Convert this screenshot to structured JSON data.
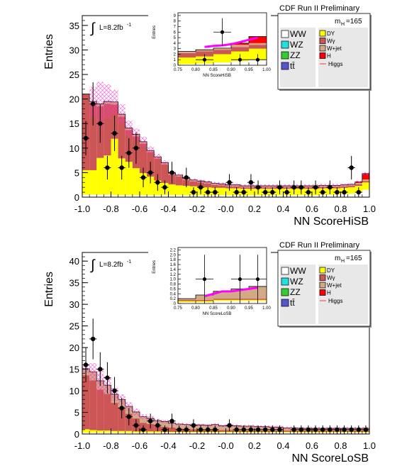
{
  "colors": {
    "WW": "#ffffff",
    "WZ": "#22e0e0",
    "ZZ": "#33cc33",
    "tt": "#5555cc",
    "DY": "#ffff00",
    "Wg": "#cc5555",
    "Wjet": "#d2aa88",
    "H": "#ff0000",
    "Higgs": "#ff00ff",
    "uncertainty": "#ff33cc"
  },
  "chart_data": [
    {
      "type": "area",
      "title": "CDF Run II Preliminary",
      "xlabel": "NN ScoreHiSB",
      "ylabel": "Entries",
      "lumi_label": "L=8.2fb",
      "lumi_sup": "-1",
      "integral_symbol": "∫",
      "mass_label": "m",
      "mass_sub": "H",
      "mass_value": "=165",
      "xlim": [
        -1.0,
        1.0
      ],
      "ylim": [
        0,
        37
      ],
      "x_ticks": [
        "-1.0",
        "-0.8",
        "-0.6",
        "-0.4",
        "-0.2",
        "-0.0",
        "0.2",
        "0.4",
        "0.6",
        "0.8",
        "1.0"
      ],
      "y_ticks": [
        "0",
        "5",
        "10",
        "15",
        "20",
        "25",
        "30",
        "35"
      ],
      "legend": [
        {
          "label": "WW",
          "key": "WW"
        },
        {
          "label": "DY",
          "key": "DY"
        },
        {
          "label": "WZ",
          "key": "WZ"
        },
        {
          "label": "Wγ",
          "key": "Wg"
        },
        {
          "label": "ZZ",
          "key": "ZZ"
        },
        {
          "label": "W+jet",
          "key": "Wjet"
        },
        {
          "label": "tt̄",
          "key": "tt"
        },
        {
          "label": "H",
          "key": "H"
        },
        {
          "label": "",
          "key": ""
        },
        {
          "label": "Higgs",
          "key": "Higgs"
        }
      ],
      "bin_width": 0.05,
      "stack": {
        "bins": [
          -1.0,
          -0.95,
          -0.9,
          -0.85,
          -0.8,
          -0.75,
          -0.7,
          -0.65,
          -0.6,
          -0.55,
          -0.5,
          -0.45,
          -0.4,
          -0.35,
          -0.3,
          -0.25,
          -0.2,
          -0.15,
          -0.1,
          -0.05,
          0.0,
          0.05,
          0.1,
          0.15,
          0.2,
          0.25,
          0.3,
          0.35,
          0.4,
          0.45,
          0.5,
          0.55,
          0.6,
          0.65,
          0.7,
          0.75,
          0.8,
          0.85,
          0.9,
          0.95
        ],
        "DY": [
          5,
          5,
          7.5,
          8,
          11.5,
          7.5,
          6.8,
          5.5,
          4.5,
          3.8,
          3,
          2.5,
          2.2,
          2,
          1.9,
          1.8,
          1.7,
          1.6,
          1.5,
          1.5,
          1.4,
          1.4,
          1.3,
          1.3,
          1.3,
          1.3,
          1.3,
          1.3,
          1.3,
          1.3,
          1.3,
          1.3,
          1.3,
          1.3,
          1.3,
          1.3,
          1.3,
          1.3,
          1.3,
          1.5
        ],
        "Wg": [
          15.5,
          13.5,
          10.5,
          10.5,
          7,
          8.5,
          6.5,
          6.5,
          6,
          5,
          4.5,
          3.8,
          2,
          1.8,
          1.2,
          1.0,
          0.9,
          0.8,
          0.6,
          0.5,
          0.4,
          0.4,
          0.3,
          0.3,
          0.3,
          0.3,
          0.3,
          0.3,
          0.3,
          0.3,
          0.3,
          0.3,
          0.3,
          0.3,
          0.3,
          0.3,
          0.3,
          0.3,
          0.3,
          0.3
        ],
        "Wjet": [
          0,
          0.5,
          0.5,
          0.5,
          0.5,
          0.5,
          0.4,
          0.4,
          0.4,
          0.3,
          0.3,
          0.3,
          0.3,
          0.3,
          0.3,
          0.3,
          0.3,
          0.3,
          0.3,
          0.3,
          0.3,
          0.3,
          0.3,
          0.3,
          0.3,
          0.3,
          0.3,
          0.3,
          0.3,
          0.3,
          0.3,
          0.3,
          0.3,
          0.3,
          0.3,
          0.3,
          0.3,
          0.3,
          0.3,
          0.3
        ],
        "WW": [
          0.5,
          0.5,
          0.5,
          0.5,
          0.4,
          0.4,
          0.4,
          0.4,
          0.4,
          0.4,
          0.4,
          0.4,
          0.4,
          0.4,
          0.4,
          0.4,
          0.4,
          0.4,
          0.4,
          0.4,
          0.4,
          0.4,
          0.4,
          0.4,
          0.4,
          0.4,
          0.4,
          0.4,
          0.4,
          0.4,
          0.4,
          0.4,
          0.4,
          0.5,
          0.5,
          0.5,
          0.6,
          0.7,
          1.0,
          1.5
        ],
        "H": [
          0,
          0,
          0,
          0,
          0,
          0,
          0,
          0,
          0,
          0,
          0,
          0,
          0,
          0,
          0,
          0,
          0,
          0,
          0,
          0,
          0,
          0,
          0,
          0,
          0,
          0,
          0,
          0,
          0,
          0,
          0,
          0,
          0,
          0,
          0,
          0,
          0,
          0,
          0.2,
          1.2
        ],
        "unc": [
          0,
          3,
          4.5,
          3.5,
          2.5,
          2,
          1.5,
          1.2,
          1,
          0.8,
          0.6,
          0.5,
          0.4,
          0.3,
          0.3,
          0.3,
          0.3,
          0.3,
          0.3,
          0.3,
          0.3,
          0.3,
          0.3,
          0.3,
          0.3,
          0.3,
          0.3,
          0.3,
          0.3,
          0.3,
          0.3,
          0.3,
          0.3,
          0.3,
          0.3,
          0.3,
          0.3,
          0.3,
          0.3,
          0.3
        ]
      },
      "data_points": {
        "x": [
          -0.975,
          -0.925,
          -0.875,
          -0.825,
          -0.775,
          -0.725,
          -0.675,
          -0.625,
          -0.575,
          -0.525,
          -0.475,
          -0.425,
          -0.375,
          -0.275,
          -0.225,
          -0.175,
          -0.125,
          -0.075,
          0.025,
          0.075,
          0.125,
          0.175,
          0.225,
          0.275,
          0.325,
          0.375,
          0.425,
          0.475,
          0.525,
          0.575,
          0.625,
          0.675,
          0.725,
          0.775,
          0.825,
          0.875,
          0.925
        ],
        "y": [
          12,
          19,
          15,
          6,
          13,
          6,
          9,
          10,
          4,
          5,
          3,
          2,
          5,
          4,
          1,
          2,
          1,
          1,
          3,
          1,
          1,
          3,
          2,
          1,
          1,
          2,
          1,
          2,
          2,
          1,
          2,
          1,
          2,
          1,
          1,
          6,
          1
        ],
        "err": [
          3.5,
          4.4,
          3.9,
          2.4,
          3.6,
          2.4,
          3,
          3.2,
          2,
          2.2,
          1.7,
          1.4,
          2.2,
          2,
          1,
          1.4,
          1,
          1,
          1.7,
          1,
          1,
          1.7,
          1.4,
          1,
          1,
          1.4,
          1,
          1.4,
          1.4,
          1,
          1.4,
          1,
          1.4,
          1,
          1,
          2.4,
          1
        ]
      },
      "inset": {
        "ylabel": "Entries",
        "xlabel": "NN ScoreHiSB",
        "xlim": [
          0.75,
          1.0
        ],
        "ylim": [
          0,
          9.5
        ],
        "x_ticks": [
          "0.75",
          "0.80",
          "0.85",
          "0.90",
          "0.95",
          "1.00"
        ],
        "y_ticks": [
          "0",
          "1",
          "2",
          "3",
          "4",
          "5",
          "6",
          "7",
          "8",
          "9"
        ],
        "bins": [
          0.75,
          0.8,
          0.85,
          0.9,
          0.95
        ],
        "DY": [
          1.2,
          1.3,
          1.5,
          1.8,
          2
        ],
        "Wg": [
          0.8,
          0.9,
          0.8,
          0.8,
          0.7
        ],
        "Wjet": [
          0.3,
          0.3,
          0.3,
          0.4,
          0.3
        ],
        "WW": [
          0.2,
          0.3,
          0.5,
          0.7,
          1.0
        ],
        "H": [
          0,
          0,
          0,
          0.3,
          1.2
        ],
        "higgs_line": {
          "x": [
            0.825,
            0.85,
            0.875,
            0.9,
            0.925,
            0.95,
            0.975
          ],
          "y": [
            3.3,
            3.5,
            3.6,
            3.8,
            4.2,
            4.6,
            5.0
          ]
        },
        "data_points": {
          "x": [
            0.825,
            0.875,
            0.925,
            0.975
          ],
          "y": [
            1,
            6,
            1,
            1
          ],
          "err": [
            1,
            2.5,
            1,
            1
          ]
        },
        "data_pt_top": {
          "x": [
            0.925
          ],
          "y": [
            7.5
          ]
        }
      }
    },
    {
      "type": "area",
      "title": "CDF Run II Preliminary",
      "xlabel": "NN ScoreLoSB",
      "ylabel": "Entries",
      "lumi_label": "L=8.2fb",
      "lumi_sup": "-1",
      "integral_symbol": "∫",
      "mass_label": "m",
      "mass_sub": "H",
      "mass_value": "=165",
      "xlim": [
        -1.0,
        1.0
      ],
      "ylim": [
        0,
        42
      ],
      "x_ticks": [
        "-1.0",
        "-0.8",
        "-0.6",
        "-0.4",
        "-0.2",
        "-0.0",
        "0.2",
        "0.4",
        "0.6",
        "0.8",
        "1.0"
      ],
      "y_ticks": [
        "0",
        "5",
        "10",
        "15",
        "20",
        "25",
        "30",
        "35",
        "40"
      ],
      "legend": [
        {
          "label": "WW",
          "key": "WW"
        },
        {
          "label": "DY",
          "key": "DY"
        },
        {
          "label": "WZ",
          "key": "WZ"
        },
        {
          "label": "Wγ",
          "key": "Wg"
        },
        {
          "label": "ZZ",
          "key": "ZZ"
        },
        {
          "label": "W+jet",
          "key": "Wjet"
        },
        {
          "label": "tt̄",
          "key": "tt"
        },
        {
          "label": "H",
          "key": "H"
        },
        {
          "label": "",
          "key": ""
        },
        {
          "label": "Higgs",
          "key": "Higgs"
        }
      ],
      "bin_width": 0.05,
      "stack": {
        "bins": [
          -1.0,
          -0.95,
          -0.9,
          -0.85,
          -0.8,
          -0.75,
          -0.7,
          -0.65,
          -0.6,
          -0.55,
          -0.5,
          -0.45,
          -0.4,
          -0.35,
          -0.3,
          -0.25,
          -0.2,
          -0.15,
          -0.1,
          -0.05,
          0.0,
          0.05,
          0.1,
          0.15,
          0.2,
          0.25,
          0.3,
          0.35,
          0.4,
          0.45,
          0.5,
          0.55,
          0.6,
          0.65,
          0.7,
          0.75,
          0.8,
          0.85,
          0.9,
          0.95
        ],
        "DY": [
          0.8,
          0.6,
          0.5,
          0.5,
          0.4,
          0.4,
          0.4,
          0.3,
          0.3,
          0.3,
          0.3,
          0.2,
          0.2,
          0.2,
          0.2,
          0.2,
          0.2,
          0.2,
          0.2,
          0.2,
          0.2,
          0.2,
          0.2,
          0.2,
          0.2,
          0.2,
          0.2,
          0.2,
          0.2,
          0.2,
          0.2,
          0.2,
          0.2,
          0.2,
          0.2,
          0.2,
          0.2,
          0.2,
          0.2,
          0.2
        ],
        "Wg": [
          12.5,
          11.5,
          9.5,
          8.5,
          6.5,
          5.5,
          4,
          3,
          2,
          1.7,
          1.3,
          1.2,
          1,
          0.8,
          0.7,
          0.6,
          0.6,
          0.5,
          0.5,
          0.4,
          0.4,
          0.4,
          0.3,
          0.3,
          0.3,
          0.3,
          0.3,
          0.3,
          0.3,
          0.3,
          0.3,
          0.3,
          0.3,
          0.3,
          0.3,
          0.3,
          0.3,
          0.3,
          0.3,
          0.3
        ],
        "Wjet": [
          1.5,
          2,
          2,
          2,
          2,
          1.8,
          1.7,
          1.5,
          1.4,
          1.3,
          1.2,
          1.2,
          1,
          1,
          1,
          1,
          1,
          1,
          1.2,
          1,
          1,
          1,
          1,
          1,
          0.9,
          0.9,
          0.8,
          0.8,
          0.6,
          0.6,
          0.5,
          0.5,
          0.5,
          0.5,
          0.5,
          0.5,
          0.5,
          0.5,
          0.5,
          0.5
        ],
        "WW": [
          0.3,
          0.3,
          0.3,
          0.3,
          0.3,
          0.3,
          0.3,
          0.3,
          0.3,
          0.3,
          0.3,
          0.3,
          0.3,
          0.3,
          0.3,
          0.3,
          0.3,
          0.3,
          0.3,
          0.3,
          0.3,
          0.3,
          0.3,
          0.3,
          0.3,
          0.3,
          0.3,
          0.3,
          0.3,
          0.3,
          0.3,
          0.3,
          0.3,
          0.3,
          0.3,
          0.3,
          0.3,
          0.3,
          0.3,
          0.3
        ],
        "H": [
          0,
          0,
          0,
          0,
          0,
          0,
          0,
          0,
          0,
          0,
          0,
          0,
          0,
          0,
          0,
          0,
          0,
          0,
          0,
          0,
          0,
          0,
          0,
          0,
          0,
          0,
          0,
          0,
          0,
          0,
          0,
          0,
          0,
          0,
          0,
          0,
          0,
          0,
          0,
          0
        ],
        "unc": [
          1,
          2,
          2.5,
          2,
          1.5,
          1.2,
          1,
          0.8,
          0.6,
          0.5,
          0.4,
          0.4,
          0.3,
          0.3,
          0.3,
          0.3,
          0.3,
          0.3,
          0.3,
          0.3,
          0.3,
          0.3,
          0.3,
          0.3,
          0.3,
          0.3,
          0.3,
          0.3,
          0.3,
          0.3,
          0.3,
          0.3,
          0.3,
          0.3,
          0.3,
          0.3,
          0.3,
          0.3,
          0.3,
          0.3
        ]
      },
      "data_points": {
        "x": [
          -0.975,
          -0.925,
          -0.875,
          -0.825,
          -0.775,
          -0.725,
          -0.675,
          -0.625,
          -0.575,
          -0.525,
          -0.475,
          -0.425,
          -0.375,
          -0.325,
          -0.275,
          -0.225,
          -0.175,
          -0.125,
          -0.075,
          0.025,
          0.075,
          0.125,
          0.175,
          0.225,
          0.275,
          0.325,
          0.375,
          0.475,
          0.525,
          0.575,
          0.625,
          0.675,
          0.725,
          0.775,
          0.825,
          0.875,
          0.925,
          0.975
        ],
        "y": [
          16,
          22,
          15,
          13,
          10,
          6,
          4,
          2,
          1,
          3,
          2,
          1,
          3,
          1,
          1,
          2,
          1,
          1,
          1,
          2,
          1,
          1,
          1,
          1,
          1,
          1,
          1,
          1,
          1,
          1,
          1,
          1,
          1,
          1,
          1,
          1,
          1,
          1
        ],
        "err": [
          4,
          4.7,
          3.9,
          3.6,
          3.2,
          2.4,
          2,
          1.4,
          1,
          1.7,
          1.4,
          1,
          1.7,
          1,
          1,
          1.4,
          1,
          1,
          1,
          1.4,
          1,
          1,
          1,
          1,
          1,
          1,
          1,
          1,
          1,
          1,
          1,
          1,
          1,
          1,
          1,
          1,
          1,
          1
        ]
      },
      "inset": {
        "ylabel": "Entries",
        "xlabel": "NN ScoreLoSB",
        "xlim": [
          0.75,
          1.0
        ],
        "ylim": [
          0,
          2.3
        ],
        "x_ticks": [
          "0.75",
          "0.80",
          "0.85",
          "0.90",
          "0.95",
          "1.00"
        ],
        "y_ticks": [
          "0",
          "0.2",
          "0.4",
          "0.6",
          "0.8",
          "1.0",
          "1.2",
          "1.4",
          "1.6",
          "1.8",
          "2.0",
          "2.2"
        ],
        "bins": [
          0.75,
          0.8,
          0.85,
          0.9,
          0.95
        ],
        "DY": [
          0.05,
          0.05,
          0.05,
          0.05,
          0.05
        ],
        "Wg": [
          0.05,
          0.05,
          0.05,
          0.05,
          0.05
        ],
        "Wjet": [
          0.05,
          0.2,
          0.3,
          0.4,
          0.5
        ],
        "WW": [
          0.05,
          0.05,
          0.1,
          0.1,
          0.1
        ],
        "H": [
          0,
          0,
          0,
          0,
          0
        ],
        "higgs_line": {
          "x": [
            0.825,
            0.85,
            0.875,
            0.9,
            0.925,
            0.95,
            0.975
          ],
          "y": [
            0.3,
            0.4,
            0.5,
            0.5,
            0.55,
            0.6,
            0.65
          ]
        },
        "data_points": {
          "x": [
            0.825,
            0.925,
            0.975
          ],
          "y": [
            1,
            1,
            1
          ],
          "err": [
            1,
            1,
            1
          ]
        },
        "data_pt_top": {
          "x": [],
          "y": []
        }
      }
    }
  ]
}
